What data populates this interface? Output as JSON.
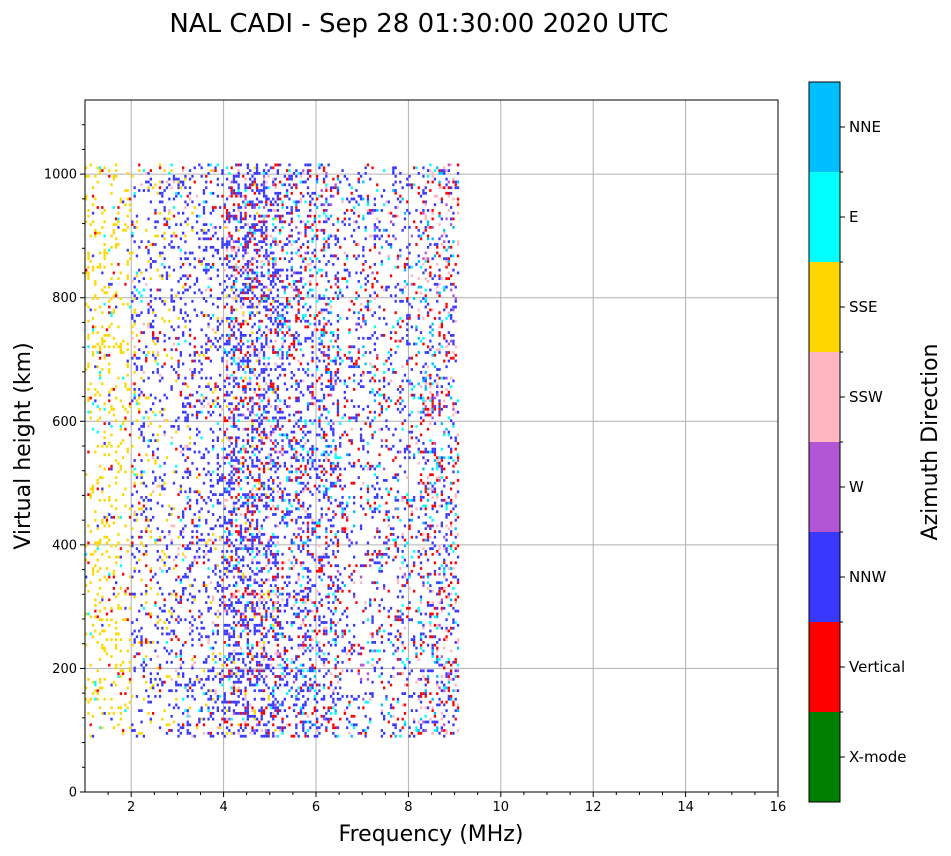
{
  "chart_data": {
    "type": "heatmap",
    "title": "NAL CADI - Sep 28 01:30:00 2020 UTC",
    "xlabel": "Frequency (MHz)",
    "ylabel": "Virtual height (km)",
    "xlim": [
      1,
      16
    ],
    "ylim": [
      0,
      1120
    ],
    "x_ticks": [
      "2",
      "4",
      "6",
      "8",
      "10",
      "12",
      "14",
      "16"
    ],
    "y_ticks": [
      "0",
      "200",
      "400",
      "600",
      "800",
      "1000"
    ],
    "grid": true,
    "colorbar": {
      "label": "Azimuth Direction",
      "categories": [
        {
          "name": "X-mode",
          "color": "#008000"
        },
        {
          "name": "Vertical",
          "color": "#ff0000"
        },
        {
          "name": "NNW",
          "color": "#3838ff"
        },
        {
          "name": "W",
          "color": "#b356d6"
        },
        {
          "name": "SSW",
          "color": "#ffb6c1"
        },
        {
          "name": "SSE",
          "color": "#ffd700"
        },
        {
          "name": "E",
          "color": "#00ffff"
        },
        {
          "name": "NNE",
          "color": "#00bfff"
        }
      ]
    },
    "data_extent": {
      "frequency_min_mhz": 1.0,
      "frequency_max_mhz": 9.1,
      "height_min_km": 88,
      "height_max_km": 1015
    },
    "frequency_bands": [
      {
        "from_mhz": 1.0,
        "to_mhz": 2.0,
        "density": 0.14,
        "mix": {
          "SSE": 0.8,
          "Vertical": 0.1,
          "NNW": 0.05,
          "E": 0.05
        }
      },
      {
        "from_mhz": 2.0,
        "to_mhz": 3.0,
        "density": 0.16,
        "mix": {
          "NNW": 0.55,
          "SSE": 0.25,
          "Vertical": 0.1,
          "E": 0.05,
          "SSW": 0.05
        }
      },
      {
        "from_mhz": 3.0,
        "to_mhz": 4.0,
        "density": 0.18,
        "mix": {
          "NNW": 0.7,
          "Vertical": 0.12,
          "SSE": 0.08,
          "E": 0.05,
          "SSW": 0.05
        }
      },
      {
        "from_mhz": 4.0,
        "to_mhz": 5.2,
        "density": 0.38,
        "mix": {
          "NNW": 0.6,
          "Vertical": 0.18,
          "SSW": 0.08,
          "E": 0.07,
          "SSE": 0.04,
          "W": 0.03
        }
      },
      {
        "from_mhz": 5.2,
        "to_mhz": 6.5,
        "density": 0.26,
        "mix": {
          "NNW": 0.55,
          "Vertical": 0.22,
          "E": 0.1,
          "NNE": 0.05,
          "SSW": 0.05,
          "W": 0.03
        }
      },
      {
        "from_mhz": 6.5,
        "to_mhz": 8.2,
        "density": 0.15,
        "mix": {
          "NNW": 0.5,
          "Vertical": 0.25,
          "E": 0.1,
          "NNE": 0.07,
          "SSW": 0.05,
          "W": 0.03
        }
      },
      {
        "from_mhz": 8.2,
        "to_mhz": 9.1,
        "density": 0.24,
        "mix": {
          "NNW": 0.35,
          "Vertical": 0.25,
          "SSW": 0.15,
          "E": 0.1,
          "NNE": 0.1,
          "W": 0.05
        }
      }
    ]
  }
}
